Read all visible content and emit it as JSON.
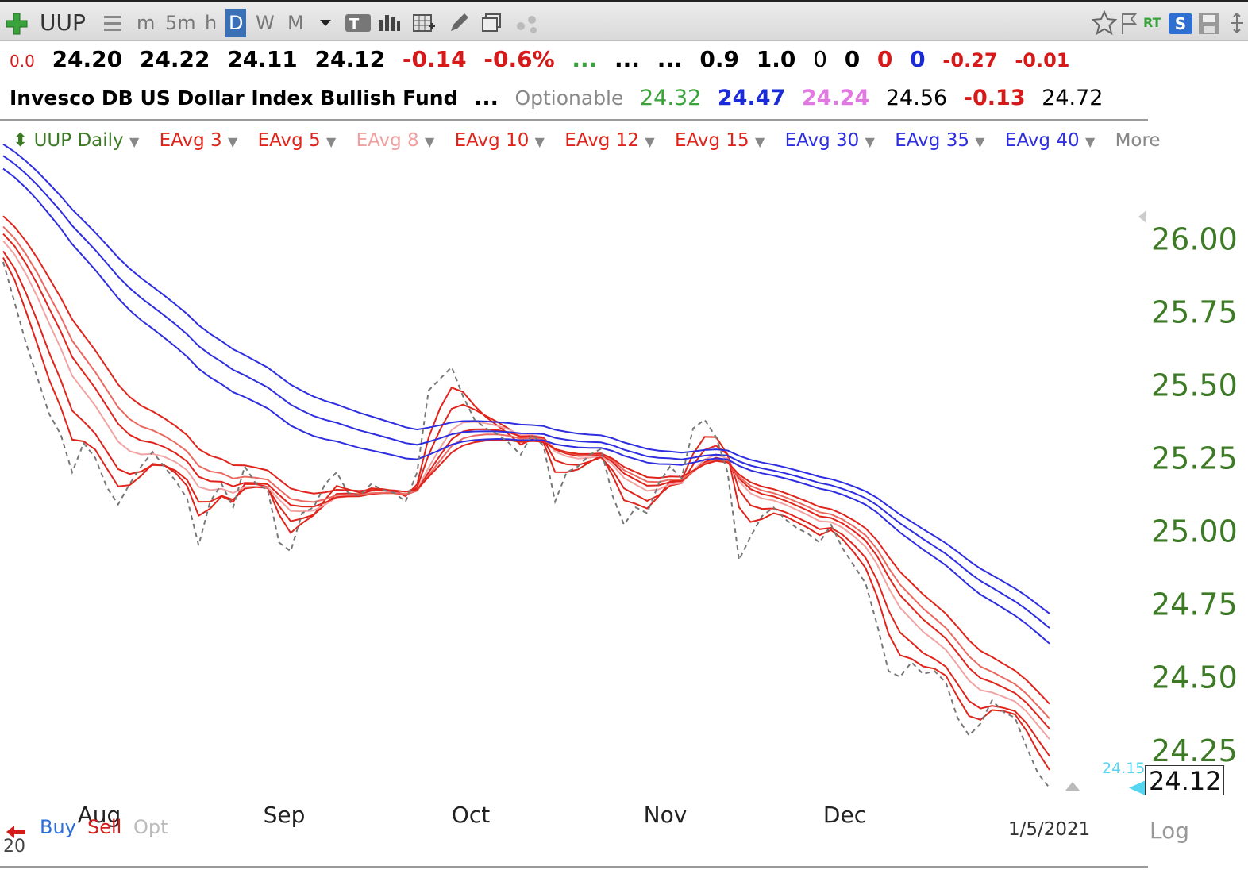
{
  "toolbar": {
    "symbol": "UUP",
    "timeframes": [
      "m",
      "5m",
      "h",
      "D",
      "W",
      "M"
    ],
    "active_timeframe": "D",
    "right_labels": {
      "rt": "RT",
      "s": "S"
    }
  },
  "quote_row1": {
    "change_small": "0.0",
    "open": "24.20",
    "high": "24.22",
    "low": "24.11",
    "last": "24.12",
    "change": "-0.14",
    "change_pct": "-0.6%",
    "dots_green": "...",
    "dots1": "...",
    "dots2": "...",
    "v1": "0.9",
    "v2": "1.0",
    "z1": "0",
    "z2": "0",
    "z3": "0",
    "z4": "0",
    "d1": "-0.27",
    "d2": "-0.01"
  },
  "quote_row2": {
    "name": "Invesco DB US Dollar Index Bullish Fund",
    "ellipsis": "...",
    "optionable": "Optionable",
    "p_green": "24.32",
    "p_blue": "24.47",
    "p_pink": "24.24",
    "p_black": "24.56",
    "p_red": "-0.13",
    "p_last": "24.72"
  },
  "legend": {
    "main": "UUP Daily",
    "items": [
      "EAvg 3",
      "EAvg 5",
      "EAvg 8",
      "EAvg 10",
      "EAvg 12",
      "EAvg 15",
      "EAvg 30",
      "EAvg 35",
      "EAvg 40"
    ],
    "more": "More"
  },
  "bottom": {
    "buy": "Buy",
    "sell": "Sell",
    "opt": "Opt",
    "date": "1/5/2021",
    "log": "Log",
    "left_num": "20"
  },
  "colors": {
    "short_ema": "#e0241b",
    "long_ema": "#2e2ee0",
    "price": "#777777",
    "axis_text": "#3d7a25",
    "up": "#d61a1a"
  },
  "chart_data": {
    "type": "line",
    "x_labels": [
      "Aug",
      "Sep",
      "Oct",
      "Nov",
      "Dec"
    ],
    "y_ticks": [
      26.0,
      25.75,
      25.5,
      25.25,
      25.0,
      24.75,
      24.5,
      24.25
    ],
    "ylim": [
      24.1,
      26.3
    ],
    "current_price": "24.12",
    "small_labels": [
      "24.15"
    ],
    "close": [
      25.92,
      25.78,
      25.64,
      25.52,
      25.4,
      25.33,
      25.2,
      25.3,
      25.25,
      25.15,
      25.09,
      25.16,
      25.22,
      25.27,
      25.22,
      25.17,
      25.11,
      24.95,
      25.1,
      25.16,
      25.08,
      25.22,
      25.16,
      25.14,
      24.96,
      24.93,
      25.06,
      25.08,
      25.16,
      25.2,
      25.13,
      25.12,
      25.16,
      25.14,
      25.13,
      25.1,
      25.2,
      25.48,
      25.52,
      25.56,
      25.46,
      25.38,
      25.35,
      25.33,
      25.3,
      25.26,
      25.33,
      25.29,
      25.1,
      25.2,
      25.22,
      25.26,
      25.28,
      25.12,
      25.02,
      25.08,
      25.06,
      25.16,
      25.22,
      25.18,
      25.35,
      25.38,
      25.32,
      25.2,
      24.9,
      24.98,
      25.05,
      25.08,
      25.04,
      25.01,
      24.99,
      24.96,
      25.02,
      24.94,
      24.88,
      24.82,
      24.68,
      24.52,
      24.5,
      24.55,
      24.51,
      24.52,
      24.48,
      24.36,
      24.3,
      24.34,
      24.42,
      24.38,
      24.36,
      24.26,
      24.17,
      24.12
    ],
    "series": [
      {
        "name": "EAvg 3",
        "period": 3
      },
      {
        "name": "EAvg 5",
        "period": 5
      },
      {
        "name": "EAvg 8",
        "period": 8
      },
      {
        "name": "EAvg 10",
        "period": 10
      },
      {
        "name": "EAvg 12",
        "period": 12
      },
      {
        "name": "EAvg 15",
        "period": 15
      },
      {
        "name": "EAvg 30",
        "period": 30
      },
      {
        "name": "EAvg 35",
        "period": 35
      },
      {
        "name": "EAvg 40",
        "period": 40
      }
    ],
    "grid": false,
    "legend_position": "top-left"
  }
}
